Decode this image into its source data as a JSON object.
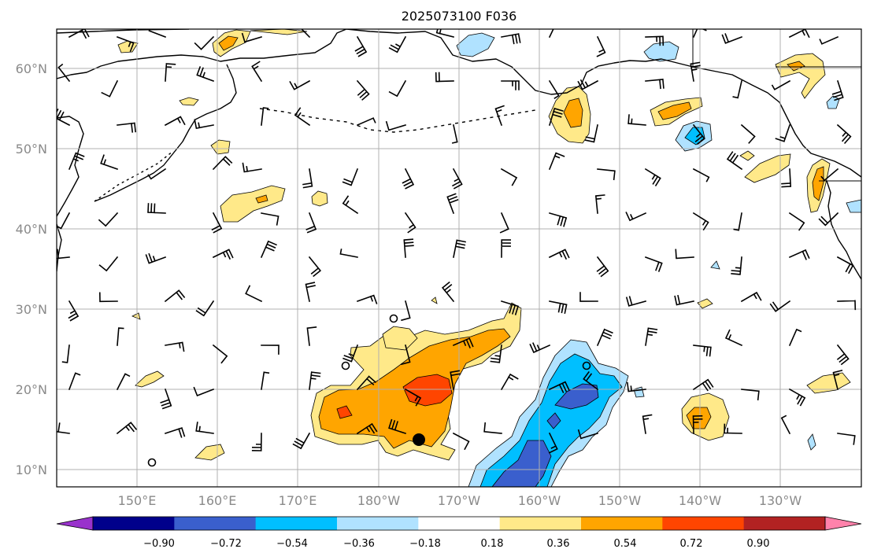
{
  "title": "2025073100 F036",
  "map": {
    "lat_labels": [
      "60°N",
      "50°N",
      "40°N",
      "30°N",
      "20°N",
      "10°N"
    ],
    "lon_labels": [
      "150°E",
      "160°E",
      "170°E",
      "180°W",
      "170°W",
      "160°W",
      "150°W",
      "140°W",
      "130°W"
    ],
    "gridlines": true,
    "extent": {
      "lon_min": 140,
      "lon_max": 240,
      "lat_min": 8,
      "lat_max": 65
    }
  },
  "colorbar": {
    "tick_labels": [
      "−0.90",
      "−0.72",
      "−0.54",
      "−0.36",
      "−0.18",
      "0.18",
      "0.36",
      "0.54",
      "0.72",
      "0.90"
    ],
    "levels": [
      -0.9,
      -0.72,
      -0.54,
      -0.36,
      -0.18,
      0.18,
      0.36,
      0.54,
      0.72,
      0.9
    ],
    "colors": [
      "#9932CC",
      "#00008B",
      "#3A5FCD",
      "#00BFFF",
      "#B0E2FF",
      "#FFFFFF",
      "#FFE989",
      "#FFA500",
      "#FF4500",
      "#B22222",
      "#FF82AB"
    ],
    "extend": "both"
  }
}
